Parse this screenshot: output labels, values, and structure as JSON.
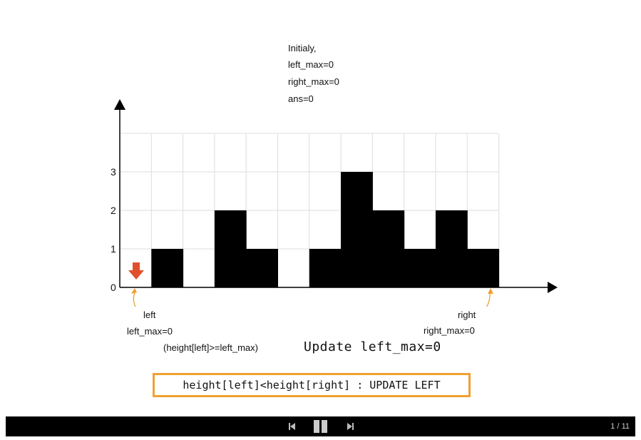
{
  "notes": {
    "initially": "Initialy,",
    "left_max": "left_max=0",
    "right_max": "right_max=0",
    "ans": "ans=0"
  },
  "chart_data": {
    "type": "bar",
    "x": [
      0,
      1,
      2,
      3,
      4,
      5,
      6,
      7,
      8,
      9,
      10,
      11
    ],
    "values": [
      0,
      1,
      0,
      2,
      1,
      0,
      1,
      3,
      2,
      1,
      2,
      1
    ],
    "ylim": [
      0,
      4
    ],
    "yticks": [
      "0",
      "1",
      "2",
      "3"
    ],
    "grid": true,
    "bar_color": "#000000",
    "grid_color": "#dddddd"
  },
  "pointers": {
    "left_label": "left",
    "left_max_label": "left_max=0",
    "right_label": "right",
    "right_max_label": "right_max=0",
    "left_arrow_color": "#e0502a",
    "pointer_curve_color": "#f0a030"
  },
  "comparison_note": "(height[left]>=left_max)",
  "update_text": "Update left_max=0",
  "condition_text": "height[left]<height[right] : UPDATE LEFT",
  "player": {
    "prev_icon": "skip-previous-icon",
    "pause_icon": "pause-icon",
    "next_icon": "skip-next-icon",
    "page_counter": "1 / 11"
  }
}
